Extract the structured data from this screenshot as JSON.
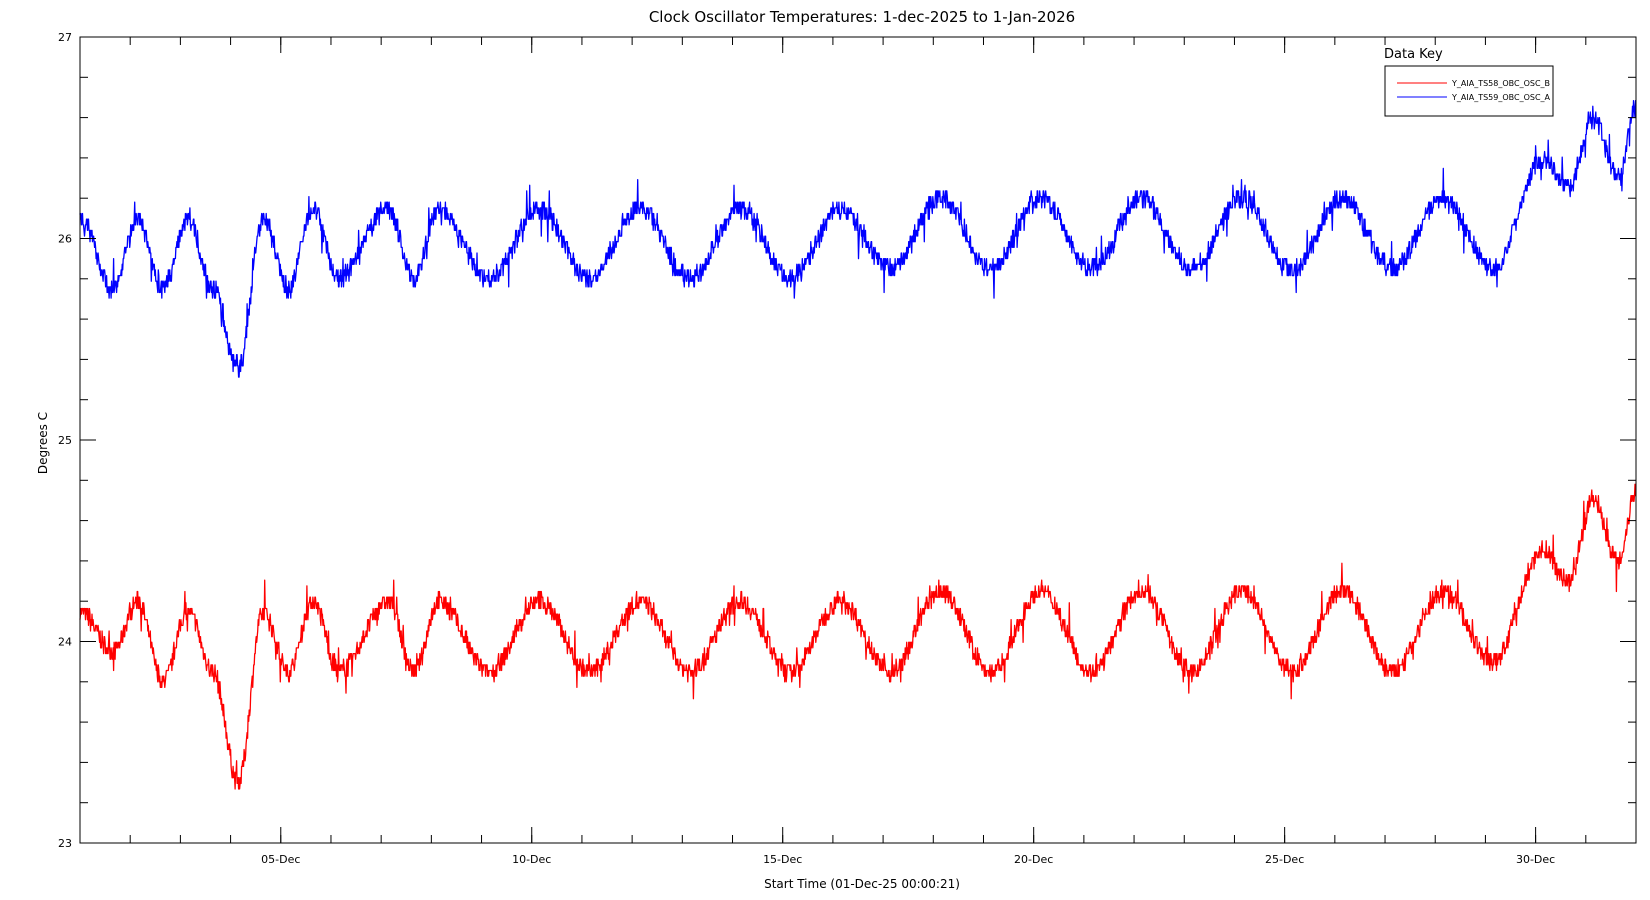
{
  "colors": {
    "background": "#ffffff",
    "axes": "#000000",
    "series_b": "#ff0000",
    "series_a": "#0000ff"
  },
  "chart_data": {
    "type": "line",
    "title": "Clock Oscillator Temperatures: 1-dec-2025 to 1-Jan-2026",
    "xlabel": "Start Time (01-Dec-25 00:00:21)",
    "ylabel": "Degrees C",
    "x_unit": "date",
    "x_start": "2025-12-01T00:00:21",
    "xlim": [
      "2025-12-01",
      "2026-01-01"
    ],
    "ylim": [
      23,
      27
    ],
    "y_ticks": [
      "23",
      "24",
      "25",
      "26",
      "27"
    ],
    "x_ticks": [
      {
        "date": "2025-12-05",
        "label": "05-Dec"
      },
      {
        "date": "2025-12-10",
        "label": "10-Dec"
      },
      {
        "date": "2025-12-15",
        "label": "15-Dec"
      },
      {
        "date": "2025-12-20",
        "label": "20-Dec"
      },
      {
        "date": "2025-12-25",
        "label": "25-Dec"
      },
      {
        "date": "2025-12-30",
        "label": "30-Dec"
      }
    ],
    "grid": false,
    "legend": {
      "title": "Data Key",
      "position": "top-right"
    },
    "series": [
      {
        "name": "Y_AIA_TS58_OBC_OSC_B",
        "color": "#ff0000",
        "daily_cycle": true,
        "points": [
          {
            "x": "2025-12-01",
            "y": 24.15
          },
          {
            "x": "2025-12-01",
            "y": 23.95
          },
          {
            "x": "2025-12-02",
            "y": 24.2
          },
          {
            "x": "2025-12-02",
            "y": 23.8
          },
          {
            "x": "2025-12-03",
            "y": 24.15
          },
          {
            "x": "2025-12-03",
            "y": 23.85
          },
          {
            "x": "2025-12-04",
            "y": 23.3
          },
          {
            "x": "2025-12-04",
            "y": 24.15
          },
          {
            "x": "2025-12-05",
            "y": 23.85
          },
          {
            "x": "2025-12-05",
            "y": 24.2
          },
          {
            "x": "2025-12-06",
            "y": 23.85
          },
          {
            "x": "2025-12-07",
            "y": 24.2
          },
          {
            "x": "2025-12-07",
            "y": 23.85
          },
          {
            "x": "2025-12-08",
            "y": 24.2
          },
          {
            "x": "2025-12-09",
            "y": 23.85
          },
          {
            "x": "2025-12-10",
            "y": 24.2
          },
          {
            "x": "2025-12-11",
            "y": 23.85
          },
          {
            "x": "2025-12-12",
            "y": 24.2
          },
          {
            "x": "2025-12-13",
            "y": 23.85
          },
          {
            "x": "2025-12-14",
            "y": 24.2
          },
          {
            "x": "2025-12-15",
            "y": 23.85
          },
          {
            "x": "2025-12-16",
            "y": 24.2
          },
          {
            "x": "2025-12-17",
            "y": 23.85
          },
          {
            "x": "2025-12-18",
            "y": 24.25
          },
          {
            "x": "2025-12-19",
            "y": 23.85
          },
          {
            "x": "2025-12-20",
            "y": 24.25
          },
          {
            "x": "2025-12-21",
            "y": 23.85
          },
          {
            "x": "2025-12-22",
            "y": 24.25
          },
          {
            "x": "2025-12-23",
            "y": 23.85
          },
          {
            "x": "2025-12-24",
            "y": 24.25
          },
          {
            "x": "2025-12-25",
            "y": 23.85
          },
          {
            "x": "2025-12-26",
            "y": 24.25
          },
          {
            "x": "2025-12-27",
            "y": 23.85
          },
          {
            "x": "2025-12-28",
            "y": 24.25
          },
          {
            "x": "2025-12-29",
            "y": 23.9
          },
          {
            "x": "2025-12-30",
            "y": 24.45
          },
          {
            "x": "2025-12-30",
            "y": 24.3
          },
          {
            "x": "2025-12-31",
            "y": 24.7
          },
          {
            "x": "2025-12-31",
            "y": 24.4
          },
          {
            "x": "2026-01-01",
            "y": 24.75
          }
        ]
      },
      {
        "name": "Y_AIA_TS59_OBC_OSC_A",
        "color": "#0000ff",
        "daily_cycle": true,
        "points": [
          {
            "x": "2025-12-01",
            "y": 26.1
          },
          {
            "x": "2025-12-01",
            "y": 25.75
          },
          {
            "x": "2025-12-02",
            "y": 26.1
          },
          {
            "x": "2025-12-02",
            "y": 25.75
          },
          {
            "x": "2025-12-03",
            "y": 26.1
          },
          {
            "x": "2025-12-03",
            "y": 25.75
          },
          {
            "x": "2025-12-04",
            "y": 25.35
          },
          {
            "x": "2025-12-04",
            "y": 26.1
          },
          {
            "x": "2025-12-05",
            "y": 25.75
          },
          {
            "x": "2025-12-05",
            "y": 26.15
          },
          {
            "x": "2025-12-06",
            "y": 25.8
          },
          {
            "x": "2025-12-07",
            "y": 26.15
          },
          {
            "x": "2025-12-07",
            "y": 25.8
          },
          {
            "x": "2025-12-08",
            "y": 26.15
          },
          {
            "x": "2025-12-09",
            "y": 25.8
          },
          {
            "x": "2025-12-10",
            "y": 26.15
          },
          {
            "x": "2025-12-11",
            "y": 25.8
          },
          {
            "x": "2025-12-12",
            "y": 26.15
          },
          {
            "x": "2025-12-13",
            "y": 25.8
          },
          {
            "x": "2025-12-14",
            "y": 26.15
          },
          {
            "x": "2025-12-15",
            "y": 25.8
          },
          {
            "x": "2025-12-16",
            "y": 26.15
          },
          {
            "x": "2025-12-17",
            "y": 25.85
          },
          {
            "x": "2025-12-18",
            "y": 26.2
          },
          {
            "x": "2025-12-19",
            "y": 25.85
          },
          {
            "x": "2025-12-20",
            "y": 26.2
          },
          {
            "x": "2025-12-21",
            "y": 25.85
          },
          {
            "x": "2025-12-22",
            "y": 26.2
          },
          {
            "x": "2025-12-23",
            "y": 25.85
          },
          {
            "x": "2025-12-24",
            "y": 26.2
          },
          {
            "x": "2025-12-25",
            "y": 25.85
          },
          {
            "x": "2025-12-26",
            "y": 26.2
          },
          {
            "x": "2025-12-27",
            "y": 25.85
          },
          {
            "x": "2025-12-28",
            "y": 26.2
          },
          {
            "x": "2025-12-29",
            "y": 25.85
          },
          {
            "x": "2025-12-30",
            "y": 26.4
          },
          {
            "x": "2025-12-30",
            "y": 26.25
          },
          {
            "x": "2025-12-31",
            "y": 26.6
          },
          {
            "x": "2025-12-31",
            "y": 26.3
          },
          {
            "x": "2026-01-01",
            "y": 26.65
          }
        ]
      }
    ]
  }
}
